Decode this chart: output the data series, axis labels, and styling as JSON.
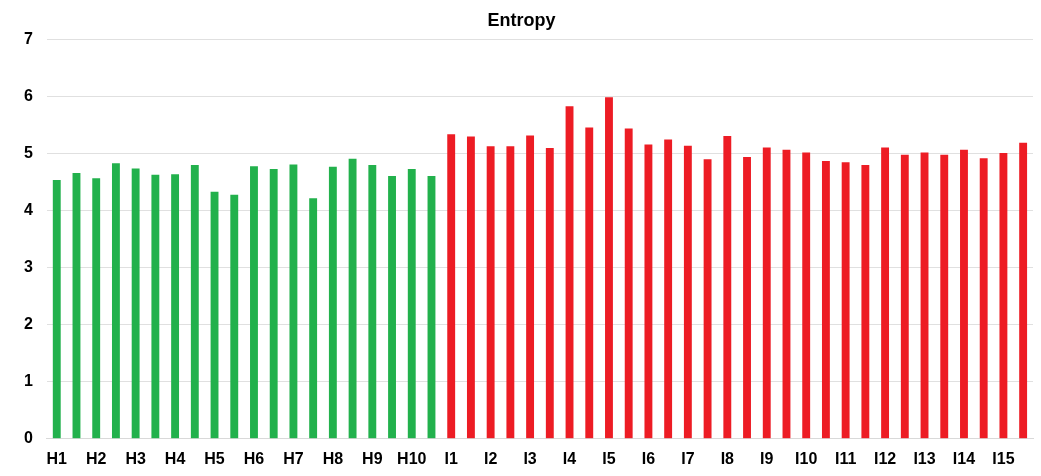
{
  "chart_data": {
    "type": "bar",
    "title": "Entropy",
    "categories": [
      "H1",
      null,
      "H2",
      null,
      "H3",
      null,
      "H4",
      null,
      "H5",
      null,
      "H6",
      null,
      "H7",
      null,
      "H8",
      null,
      "H9",
      null,
      "H10",
      null,
      "I1",
      null,
      "I2",
      null,
      "I3",
      null,
      "I4",
      null,
      "I5",
      null,
      "I6",
      null,
      "I7",
      null,
      "I8",
      null,
      "I9",
      null,
      "I10",
      null,
      "I11",
      null,
      "I12",
      null,
      "I13",
      null,
      "I14",
      null,
      "I15",
      null
    ],
    "values": [
      4.54,
      4.66,
      4.57,
      4.83,
      4.74,
      4.63,
      4.64,
      4.8,
      4.33,
      4.28,
      4.78,
      4.73,
      4.81,
      4.22,
      4.77,
      4.91,
      4.8,
      4.61,
      4.73,
      4.61,
      5.34,
      5.3,
      5.13,
      5.13,
      5.32,
      5.1,
      5.83,
      5.46,
      5.99,
      5.44,
      5.16,
      5.25,
      5.14,
      4.9,
      5.31,
      4.94,
      5.11,
      5.07,
      5.02,
      4.87,
      4.85,
      4.8,
      5.11,
      4.98,
      5.02,
      4.98,
      5.07,
      4.92,
      5.01,
      5.19
    ],
    "colors": [
      "#22b14c",
      "#22b14c",
      "#22b14c",
      "#22b14c",
      "#22b14c",
      "#22b14c",
      "#22b14c",
      "#22b14c",
      "#22b14c",
      "#22b14c",
      "#22b14c",
      "#22b14c",
      "#22b14c",
      "#22b14c",
      "#22b14c",
      "#22b14c",
      "#22b14c",
      "#22b14c",
      "#22b14c",
      "#22b14c",
      "#ed1c24",
      "#ed1c24",
      "#ed1c24",
      "#ed1c24",
      "#ed1c24",
      "#ed1c24",
      "#ed1c24",
      "#ed1c24",
      "#ed1c24",
      "#ed1c24",
      "#ed1c24",
      "#ed1c24",
      "#ed1c24",
      "#ed1c24",
      "#ed1c24",
      "#ed1c24",
      "#ed1c24",
      "#ed1c24",
      "#ed1c24",
      "#ed1c24",
      "#ed1c24",
      "#ed1c24",
      "#ed1c24",
      "#ed1c24",
      "#ed1c24",
      "#ed1c24",
      "#ed1c24",
      "#ed1c24",
      "#ed1c24",
      "#ed1c24"
    ],
    "ylim": [
      0,
      7
    ],
    "yticks": [
      0,
      1,
      2,
      3,
      4,
      5,
      6,
      7
    ],
    "grid": "y"
  }
}
